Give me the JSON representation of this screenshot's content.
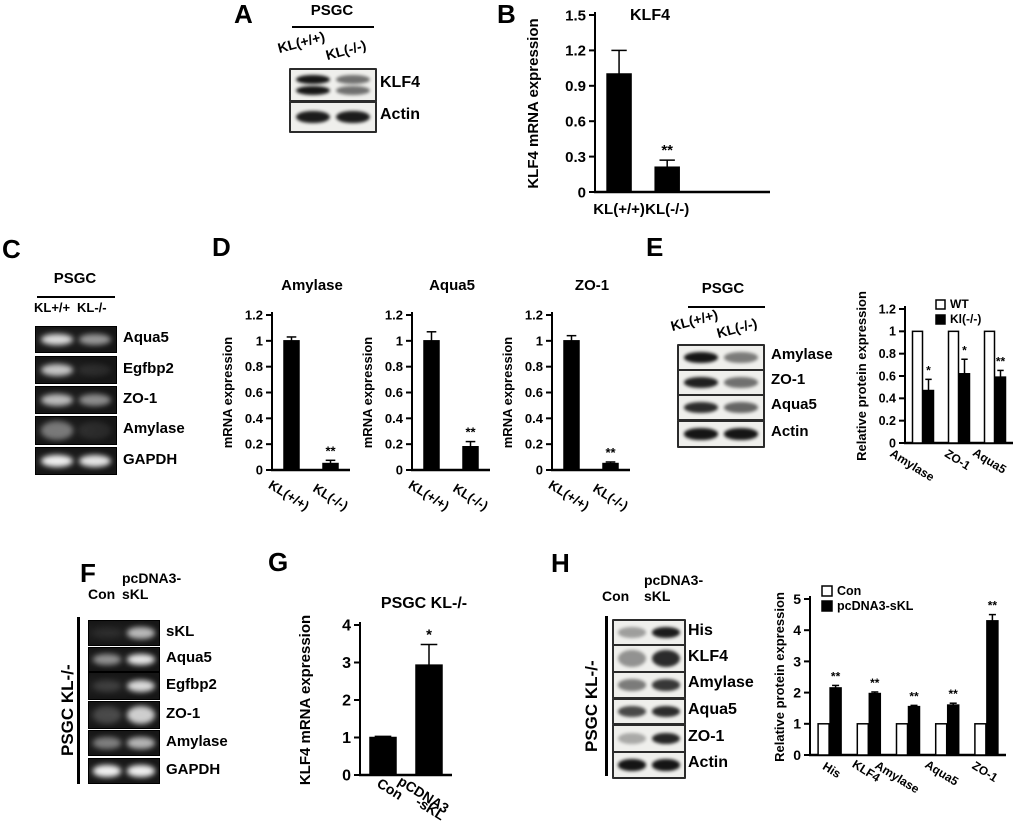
{
  "panels": {
    "A": "A",
    "B": "B",
    "C": "C",
    "D": "D",
    "E": "E",
    "F": "F",
    "G": "G",
    "H": "H"
  },
  "colors": {
    "bar_black": "#000000",
    "bar_white": "#ffffff",
    "text": "#000000",
    "background": "#ffffff"
  },
  "chart_data": [
    {
      "id": "B",
      "type": "bar",
      "title": "KLF4",
      "ylabel": "KLF4 mRNA expression",
      "ylim": [
        0,
        1.5
      ],
      "yticks": [
        0,
        0.3,
        0.6,
        0.9,
        1.2,
        1.5
      ],
      "categories": [
        "KL(+/+)",
        "KL(-/-)"
      ],
      "series": [
        {
          "name": "",
          "color": "#000000",
          "values": [
            1.0,
            0.21
          ],
          "errors": [
            0.2,
            0.06
          ],
          "sig": [
            "",
            "**"
          ]
        }
      ],
      "legend": null
    },
    {
      "id": "D1",
      "type": "bar",
      "title": "Amylase",
      "ylabel": "mRNA expression",
      "ylim": [
        0,
        1.2
      ],
      "yticks": [
        0,
        0.2,
        0.4,
        0.6,
        0.8,
        1,
        1.2
      ],
      "categories": [
        "KL(+/+)",
        "KL(-/-)"
      ],
      "series": [
        {
          "name": "",
          "color": "#000000",
          "values": [
            1.0,
            0.05
          ],
          "errors": [
            0.03,
            0.025
          ],
          "sig": [
            "",
            "**"
          ]
        }
      ],
      "legend": null
    },
    {
      "id": "D2",
      "type": "bar",
      "title": "Aqua5",
      "ylabel": "mRNA expression",
      "ylim": [
        0,
        1.2
      ],
      "yticks": [
        0,
        0.2,
        0.4,
        0.6,
        0.8,
        1,
        1.2
      ],
      "categories": [
        "KL(+/+)",
        "KL(-/-)"
      ],
      "series": [
        {
          "name": "",
          "color": "#000000",
          "values": [
            1.0,
            0.18
          ],
          "errors": [
            0.07,
            0.04
          ],
          "sig": [
            "",
            "**"
          ]
        }
      ],
      "legend": null
    },
    {
      "id": "D3",
      "type": "bar",
      "title": "ZO-1",
      "ylabel": "mRNA expression",
      "ylim": [
        0,
        1.2
      ],
      "yticks": [
        0,
        0.2,
        0.4,
        0.6,
        0.8,
        1,
        1.2
      ],
      "categories": [
        "KL(+/+)",
        "KL(-/-)"
      ],
      "series": [
        {
          "name": "",
          "color": "#000000",
          "values": [
            1.0,
            0.05
          ],
          "errors": [
            0.04,
            0.012
          ],
          "sig": [
            "",
            "**"
          ]
        }
      ],
      "legend": null
    },
    {
      "id": "E",
      "type": "bar",
      "title": "",
      "ylabel": "Relative protein expression",
      "ylim": [
        0,
        1.2
      ],
      "yticks": [
        0,
        0.2,
        0.4,
        0.6,
        0.8,
        1,
        1.2
      ],
      "categories": [
        "Amylase",
        "ZO-1",
        "Aqua5"
      ],
      "series": [
        {
          "name": "WT",
          "color": "#ffffff",
          "values": [
            1,
            1,
            1
          ],
          "errors": [
            0,
            0,
            0
          ],
          "sig": [
            "",
            "",
            ""
          ]
        },
        {
          "name": "Kl(-/-)",
          "color": "#000000",
          "values": [
            0.47,
            0.62,
            0.59
          ],
          "errors": [
            0.1,
            0.13,
            0.06
          ],
          "sig": [
            "*",
            "*",
            "**"
          ]
        }
      ],
      "legend": [
        "WT",
        "Kl(-/-)"
      ]
    },
    {
      "id": "G",
      "type": "bar",
      "title": "PSGC KL-/-",
      "ylabel": "KLF4 mRNA expression",
      "ylim": [
        0,
        4
      ],
      "yticks": [
        0,
        1,
        2,
        3,
        4
      ],
      "categories": [
        "Con",
        [
          "pCDNA3",
          "-sKL"
        ]
      ],
      "series": [
        {
          "name": "",
          "color": "#000000",
          "values": [
            1.0,
            2.93
          ],
          "errors": [
            0.03,
            0.55
          ],
          "sig": [
            "",
            "*"
          ]
        }
      ],
      "legend": null
    },
    {
      "id": "H",
      "type": "bar",
      "title": "",
      "ylabel": "Relative protein expression",
      "ylim": [
        0,
        5
      ],
      "yticks": [
        0,
        1,
        2,
        3,
        4,
        5
      ],
      "categories": [
        "His",
        "KLF4",
        "Amylase",
        "Aqua5",
        "ZO-1"
      ],
      "series": [
        {
          "name": "Con",
          "color": "#ffffff",
          "values": [
            1,
            1,
            1,
            1,
            1
          ],
          "errors": [
            0,
            0,
            0,
            0,
            0
          ],
          "sig": [
            "",
            "",
            "",
            "",
            ""
          ]
        },
        {
          "name": "pcDNA3-sKL",
          "color": "#000000",
          "values": [
            2.15,
            1.97,
            1.55,
            1.6,
            4.3
          ],
          "errors": [
            0.08,
            0.05,
            0.04,
            0.06,
            0.2
          ],
          "sig": [
            "**",
            "**",
            "**",
            "**",
            "**"
          ]
        }
      ],
      "legend": [
        "Con",
        "pcDNA3-sKL"
      ]
    }
  ],
  "blots": [
    {
      "id": "A",
      "type": "wb",
      "header": "PSGC",
      "lanes": [
        "KL(+/+)",
        "KL(-/-)"
      ],
      "rows": [
        {
          "label": "KLF4",
          "bands": [
            0.95,
            0.55
          ],
          "double": true
        },
        {
          "label": "Actin",
          "bands": [
            0.92,
            0.92
          ]
        }
      ]
    },
    {
      "id": "C",
      "type": "gel",
      "header": "PSGC",
      "lanes": [
        "KL+/+",
        "KL-/-"
      ],
      "rows": [
        {
          "label": "Aqua5",
          "bands": [
            0.85,
            0.55
          ]
        },
        {
          "label": "Egfbp2",
          "bands": [
            0.75,
            0.07
          ]
        },
        {
          "label": "ZO-1",
          "bands": [
            0.7,
            0.5
          ]
        },
        {
          "label": "Amylase",
          "bands": [
            0.4,
            0.07
          ],
          "smear": true
        },
        {
          "label": "GAPDH",
          "bands": [
            0.95,
            0.9
          ]
        }
      ]
    },
    {
      "id": "E",
      "type": "wb",
      "header": "PSGC",
      "lanes": [
        "KL(+/+)",
        "KL(-/-)"
      ],
      "rows": [
        {
          "label": "Amylase",
          "bands": [
            0.95,
            0.5
          ]
        },
        {
          "label": "ZO-1",
          "bands": [
            0.9,
            0.55
          ]
        },
        {
          "label": "Aqua5",
          "bands": [
            0.85,
            0.6
          ]
        },
        {
          "label": "Actin",
          "bands": [
            0.95,
            0.95
          ]
        }
      ]
    },
    {
      "id": "F",
      "type": "gel",
      "sideLabel": "PSGC KL-/-",
      "lanes": [
        "Con",
        "pcDNA3-\nsKL"
      ],
      "rows": [
        {
          "label": "sKL",
          "bands": [
            0.04,
            0.7
          ]
        },
        {
          "label": "Aqua5",
          "bands": [
            0.5,
            0.9
          ]
        },
        {
          "label": "Egfbp2",
          "bands": [
            0.12,
            0.85
          ]
        },
        {
          "label": "ZO-1",
          "bands": [
            0.18,
            0.8
          ],
          "smear": true
        },
        {
          "label": "Amylase",
          "bands": [
            0.42,
            0.68
          ]
        },
        {
          "label": "GAPDH",
          "bands": [
            0.95,
            0.95
          ]
        }
      ]
    },
    {
      "id": "H",
      "type": "wb",
      "sideLabel": "PSGC KL-/-",
      "lanes": [
        "Con",
        "pcDNA3-\nsKL"
      ],
      "rows": [
        {
          "label": "His",
          "bands": [
            0.35,
            0.92
          ]
        },
        {
          "label": "KLF4",
          "bands": [
            0.4,
            0.85
          ],
          "smear": true
        },
        {
          "label": "Amylase",
          "bands": [
            0.5,
            0.8
          ]
        },
        {
          "label": "Aqua5",
          "bands": [
            0.72,
            0.85
          ]
        },
        {
          "label": "ZO-1",
          "bands": [
            0.3,
            0.88
          ]
        },
        {
          "label": "Actin",
          "bands": [
            0.95,
            0.95
          ]
        }
      ]
    }
  ]
}
